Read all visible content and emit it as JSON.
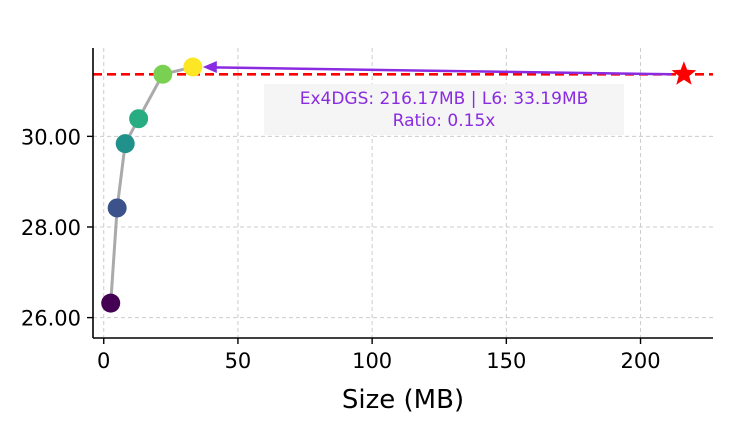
{
  "chart_data": {
    "type": "scatter",
    "title": "",
    "xlabel": "Size (MB)",
    "ylabel": "",
    "xlim": [
      -4,
      227
    ],
    "ylim": [
      25.55,
      31.95
    ],
    "xticks": [
      0,
      50,
      100,
      150,
      200
    ],
    "xtick_labels": [
      "0",
      "50",
      "100",
      "150",
      "200"
    ],
    "yticks": [
      26,
      28,
      30
    ],
    "ytick_labels": [
      "26.00",
      "28.00",
      "30.00"
    ],
    "grid": true,
    "series": [
      {
        "points": [
          {
            "x": 2.6,
            "y": 26.32,
            "color": "#440154"
          },
          {
            "x": 5.0,
            "y": 28.42,
            "color": "#3b528b"
          },
          {
            "x": 8.0,
            "y": 29.84,
            "color": "#21918c"
          },
          {
            "x": 13.0,
            "y": 30.39,
            "color": "#27ad81"
          },
          {
            "x": 22.0,
            "y": 31.37,
            "color": "#7ad151"
          },
          {
            "x": 33.19,
            "y": 31.53,
            "color": "#fde725"
          }
        ],
        "line_color": "#aaaaaa"
      }
    ],
    "reference": {
      "x": 216.17,
      "y": 31.37,
      "marker": "star",
      "color": "#ff0000"
    },
    "hline": {
      "y": 31.37,
      "color": "#ff0000",
      "style": "dashed"
    },
    "arrow": {
      "color": "#8a2be2"
    },
    "annotation": {
      "lines": [
        "Ex4DGS: 216.17MB | L6: 33.19MB",
        "Ratio: 0.15x"
      ],
      "color": "#8a2be2",
      "box_color": "#f5f5f5"
    }
  }
}
